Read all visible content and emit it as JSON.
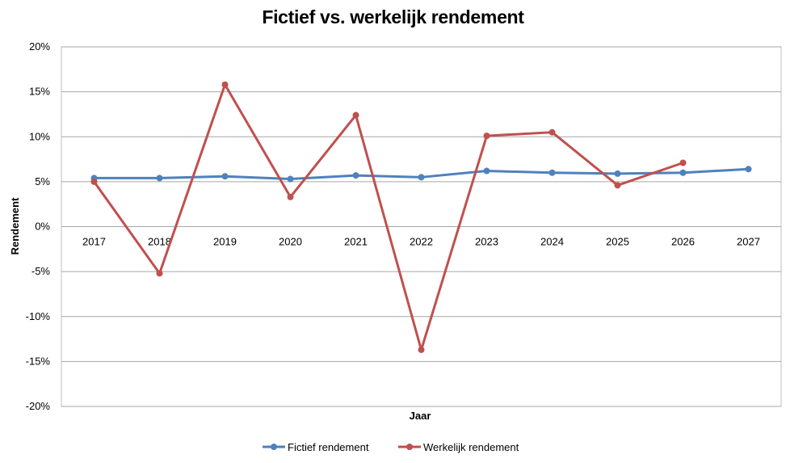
{
  "chart_data": {
    "type": "line",
    "title": "Fictief vs. werkelijk rendement",
    "xlabel": "Jaar",
    "ylabel": "Rendement",
    "categories": [
      "2017",
      "2018",
      "2019",
      "2020",
      "2021",
      "2022",
      "2023",
      "2024",
      "2025",
      "2026",
      "2027"
    ],
    "ylim": [
      -0.2,
      0.2
    ],
    "yticks": [
      0.2,
      0.15,
      0.1,
      0.05,
      0.0,
      -0.05,
      -0.1,
      -0.15,
      -0.2
    ],
    "ytick_labels": [
      "20%",
      "15%",
      "10%",
      "5%",
      "0%",
      "-5%",
      "-10%",
      "-15%",
      "-20%"
    ],
    "grid": true,
    "legend_position": "bottom",
    "series": [
      {
        "name": "Fictief rendement",
        "color": "#4F81BD",
        "values": [
          0.054,
          0.054,
          0.056,
          0.053,
          0.057,
          0.055,
          0.062,
          0.06,
          0.059,
          0.06,
          0.064
        ]
      },
      {
        "name": "Werkelijk rendement",
        "color": "#C0504D",
        "values": [
          0.05,
          -0.052,
          0.158,
          0.033,
          0.124,
          -0.137,
          0.101,
          0.105,
          0.046,
          0.071,
          null
        ]
      }
    ]
  }
}
